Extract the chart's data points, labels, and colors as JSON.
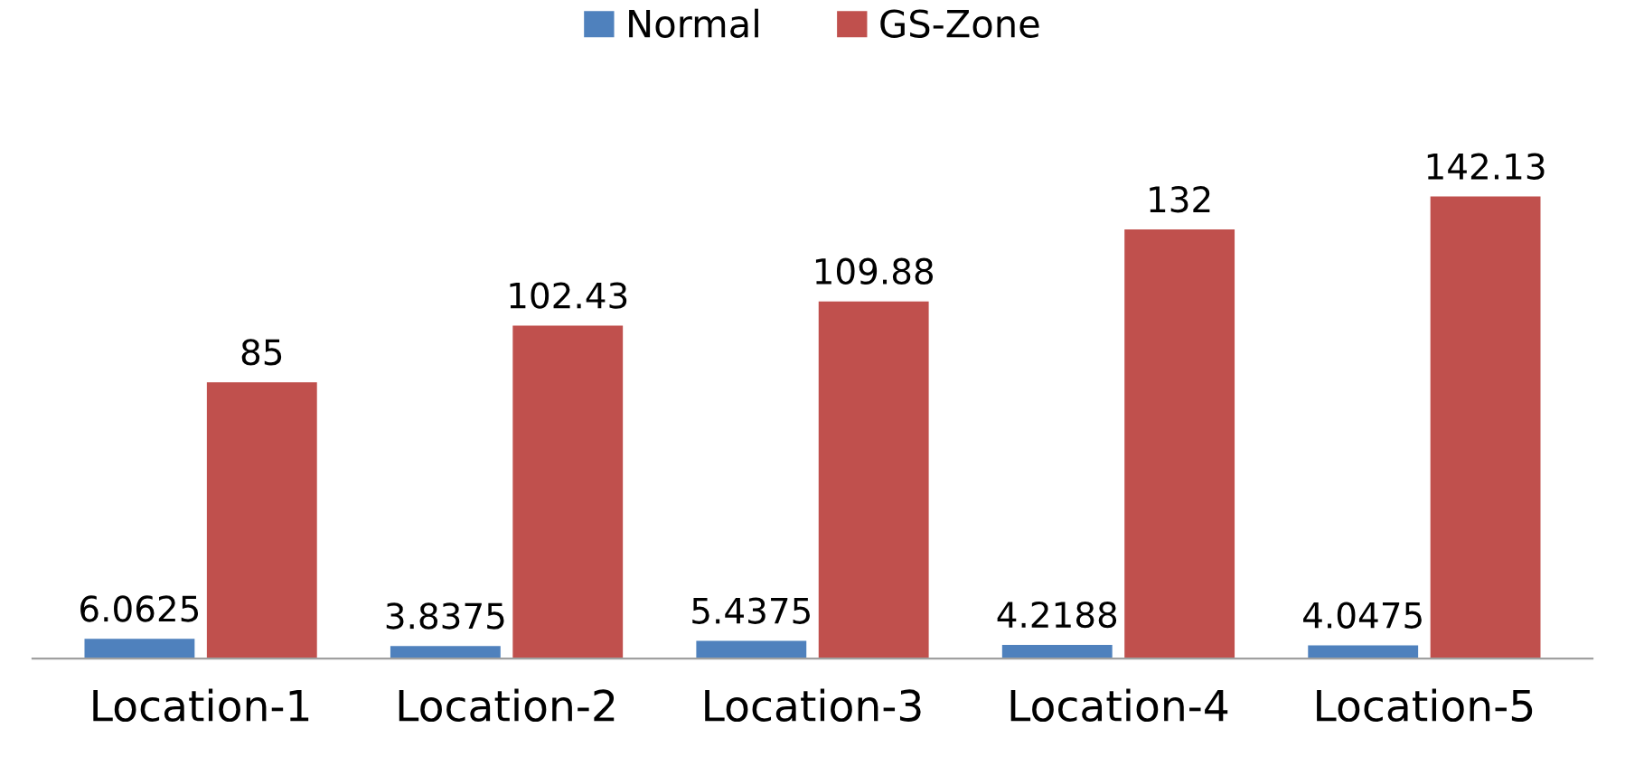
{
  "chart_data": {
    "type": "bar",
    "categories": [
      "Location-1",
      "Location-2",
      "Location-3",
      "Location-4",
      "Location-5"
    ],
    "series": [
      {
        "name": "Normal",
        "color": "#4f81bd",
        "values": [
          6.0625,
          3.8375,
          5.4375,
          4.2188,
          4.0475
        ]
      },
      {
        "name": "GS-Zone",
        "color": "#c0504d",
        "values": [
          85,
          102.43,
          109.88,
          132,
          142.13
        ]
      }
    ],
    "data_labels": true,
    "legend": "top",
    "grid": false
  }
}
